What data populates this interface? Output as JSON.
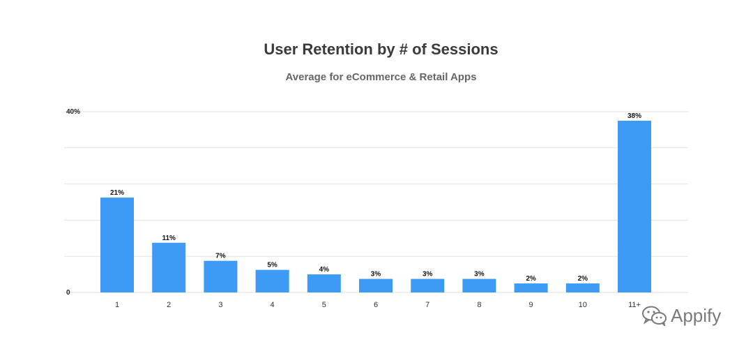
{
  "chart_data": {
    "type": "bar",
    "title": "User Retention by # of Sessions",
    "subtitle": "Average for eCommerce & Retail Apps",
    "xlabel": "",
    "ylabel": "",
    "categories": [
      "1",
      "2",
      "3",
      "4",
      "5",
      "6",
      "7",
      "8",
      "9",
      "10",
      "11+"
    ],
    "values": [
      21,
      11,
      7,
      5,
      4,
      3,
      3,
      3,
      2,
      2,
      38
    ],
    "data_labels": [
      "21%",
      "11%",
      "7%",
      "5%",
      "4%",
      "3%",
      "3%",
      "3%",
      "2%",
      "2%",
      "38%"
    ],
    "ylim": [
      0,
      40
    ],
    "y_tick_values": [
      0,
      8,
      16,
      24,
      32,
      40
    ],
    "y_tick_labels": [
      "0",
      "",
      "",
      "",
      "",
      "40%"
    ],
    "grid": true,
    "bar_color": "#3d9bf5",
    "grid_color": "#e2e2e2"
  },
  "watermark": {
    "text": "Appify",
    "icon": "wechat-icon"
  }
}
